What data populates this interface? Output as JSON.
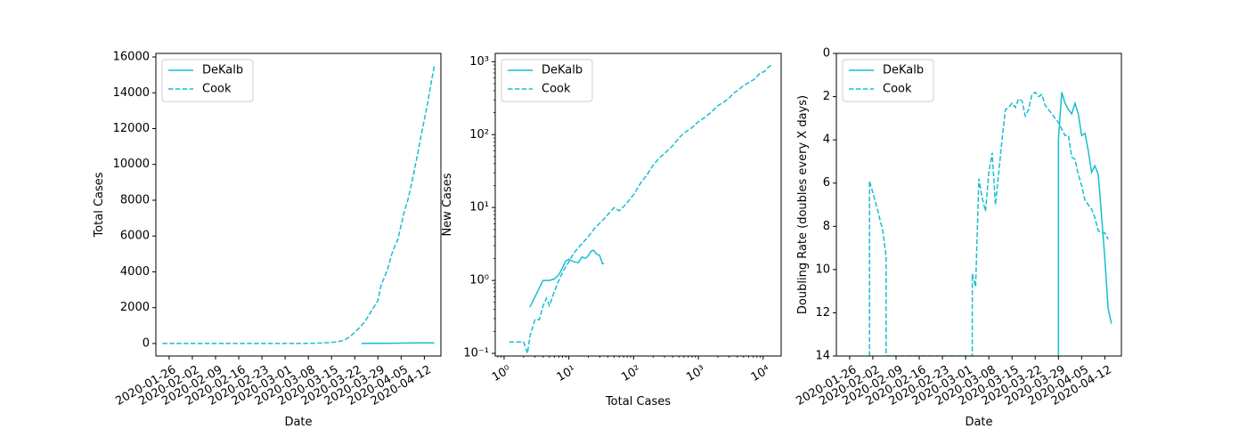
{
  "chart_data": [
    {
      "type": "line",
      "xlabel": "Date",
      "ylabel": "Total Cases",
      "xscale": "date",
      "yscale": "linear",
      "xlim": [
        "2020-01-22",
        "2020-04-17"
      ],
      "ylim": [
        -700,
        16200
      ],
      "x_ticks": [
        "2020-01-26",
        "2020-02-02",
        "2020-02-09",
        "2020-02-16",
        "2020-02-23",
        "2020-03-01",
        "2020-03-08",
        "2020-03-15",
        "2020-03-22",
        "2020-03-29",
        "2020-04-05",
        "2020-04-12"
      ],
      "y_ticks": [
        0,
        2000,
        4000,
        6000,
        8000,
        10000,
        12000,
        14000,
        16000
      ],
      "legend_position": "upper left",
      "series": [
        {
          "name": "DeKalb",
          "style": "solid",
          "color": "#17becf",
          "points": [
            [
              "2020-03-24",
              1
            ],
            [
              "2020-03-27",
              4
            ],
            [
              "2020-03-31",
              10
            ],
            [
              "2020-04-03",
              18
            ],
            [
              "2020-04-07",
              25
            ],
            [
              "2020-04-11",
              30
            ],
            [
              "2020-04-15",
              33
            ]
          ]
        },
        {
          "name": "Cook",
          "style": "dashed",
          "color": "#17becf",
          "points": [
            [
              "2020-01-24",
              1
            ],
            [
              "2020-02-15",
              2
            ],
            [
              "2020-03-01",
              3
            ],
            [
              "2020-03-08",
              6
            ],
            [
              "2020-03-12",
              25
            ],
            [
              "2020-03-15",
              60
            ],
            [
              "2020-03-17",
              100
            ],
            [
              "2020-03-19",
              200
            ],
            [
              "2020-03-21",
              450
            ],
            [
              "2020-03-23",
              800
            ],
            [
              "2020-03-25",
              1200
            ],
            [
              "2020-03-27",
              1800
            ],
            [
              "2020-03-29",
              2400
            ],
            [
              "2020-03-30",
              3300
            ],
            [
              "2020-03-31",
              3700
            ],
            [
              "2020-04-01",
              4200
            ],
            [
              "2020-04-02",
              4900
            ],
            [
              "2020-04-03",
              5400
            ],
            [
              "2020-04-04",
              5800
            ],
            [
              "2020-04-05",
              6600
            ],
            [
              "2020-04-06",
              7400
            ],
            [
              "2020-04-07",
              8000
            ],
            [
              "2020-04-08",
              8800
            ],
            [
              "2020-04-09",
              9700
            ],
            [
              "2020-04-10",
              10600
            ],
            [
              "2020-04-11",
              11600
            ],
            [
              "2020-04-12",
              12500
            ],
            [
              "2020-04-13",
              13400
            ],
            [
              "2020-04-14",
              14500
            ],
            [
              "2020-04-15",
              15500
            ]
          ]
        }
      ]
    },
    {
      "type": "line",
      "xlabel": "Total Cases",
      "ylabel": "New Cases",
      "xscale": "log",
      "yscale": "log",
      "xlim": [
        0.73,
        19000
      ],
      "ylim": [
        0.092,
        1300
      ],
      "x_ticks": [
        {
          "value": 1,
          "label": "10⁰"
        },
        {
          "value": 10,
          "label": "10¹"
        },
        {
          "value": 100,
          "label": "10²"
        },
        {
          "value": 1000,
          "label": "10³"
        },
        {
          "value": 10000,
          "label": "10⁴"
        }
      ],
      "y_ticks": [
        {
          "value": 0.1,
          "label": "10⁻¹"
        },
        {
          "value": 1,
          "label": "10⁰"
        },
        {
          "value": 10,
          "label": "10¹"
        },
        {
          "value": 100,
          "label": "10²"
        },
        {
          "value": 1000,
          "label": "10³"
        }
      ],
      "legend_position": "upper left",
      "series": [
        {
          "name": "DeKalb",
          "style": "solid",
          "color": "#17becf",
          "points": [
            [
              2.5,
              0.43
            ],
            [
              4,
              1.0
            ],
            [
              5,
              1.0
            ],
            [
              6,
              1.05
            ],
            [
              7,
              1.2
            ],
            [
              8,
              1.5
            ],
            [
              9,
              1.85
            ],
            [
              10,
              1.95
            ],
            [
              12,
              1.8
            ],
            [
              14,
              1.75
            ],
            [
              16,
              2.1
            ],
            [
              18,
              2.0
            ],
            [
              20,
              2.2
            ],
            [
              22,
              2.5
            ],
            [
              24,
              2.6
            ],
            [
              27,
              2.3
            ],
            [
              30,
              2.2
            ],
            [
              33,
              1.7
            ],
            [
              35,
              1.7
            ]
          ]
        },
        {
          "name": "Cook",
          "style": "dashed",
          "color": "#17becf",
          "points": [
            [
              1.2,
              0.143
            ],
            [
              2,
              0.143
            ],
            [
              2.3,
              0.1
            ],
            [
              2.5,
              0.17
            ],
            [
              3,
              0.29
            ],
            [
              3.5,
              0.29
            ],
            [
              4,
              0.45
            ],
            [
              4.5,
              0.57
            ],
            [
              5,
              0.45
            ],
            [
              6,
              0.71
            ],
            [
              7,
              1.0
            ],
            [
              8,
              1.3
            ],
            [
              10,
              1.8
            ],
            [
              12,
              2.4
            ],
            [
              15,
              3.0
            ],
            [
              20,
              4.0
            ],
            [
              25,
              5.2
            ],
            [
              35,
              7.0
            ],
            [
              45,
              9.0
            ],
            [
              50,
              10.0
            ],
            [
              60,
              9.0
            ],
            [
              75,
              11.0
            ],
            [
              100,
              15.0
            ],
            [
              130,
              22.0
            ],
            [
              160,
              28.0
            ],
            [
              200,
              38.0
            ],
            [
              250,
              48.0
            ],
            [
              300,
              55.0
            ],
            [
              400,
              70.0
            ],
            [
              500,
              90.0
            ],
            [
              600,
              105.0
            ],
            [
              800,
              125.0
            ],
            [
              1000,
              150.0
            ],
            [
              1300,
              175.0
            ],
            [
              1600,
              205.0
            ],
            [
              2000,
              250.0
            ],
            [
              2500,
              280.0
            ],
            [
              3000,
              320.0
            ],
            [
              3500,
              370.0
            ],
            [
              4000,
              400.0
            ],
            [
              5000,
              470.0
            ],
            [
              6000,
              520.0
            ],
            [
              7000,
              560.0
            ],
            [
              8000,
              620.0
            ],
            [
              9000,
              700.0
            ],
            [
              10000,
              720.0
            ],
            [
              11000,
              760.0
            ],
            [
              12000,
              840.0
            ],
            [
              13000,
              880.0
            ],
            [
              14000,
              900.0
            ]
          ]
        }
      ]
    },
    {
      "type": "line",
      "xlabel": "Date",
      "ylabel": "Doubling Rate (doubles every X days)",
      "xscale": "date",
      "yscale": "linear",
      "y_inverted": true,
      "xlim": [
        "2020-01-22",
        "2020-04-17"
      ],
      "ylim": [
        14,
        0
      ],
      "x_ticks": [
        "2020-01-26",
        "2020-02-02",
        "2020-02-09",
        "2020-02-16",
        "2020-02-23",
        "2020-03-01",
        "2020-03-08",
        "2020-03-15",
        "2020-03-22",
        "2020-03-29",
        "2020-04-05",
        "2020-04-12"
      ],
      "y_ticks": [
        0,
        2,
        4,
        6,
        8,
        10,
        12,
        14
      ],
      "legend_position": "upper left",
      "series": [
        {
          "name": "DeKalb",
          "style": "solid",
          "color": "#17becf",
          "points": [
            [
              "2020-03-29",
              14
            ],
            [
              "2020-03-29",
              4.0
            ],
            [
              "2020-03-30",
              1.8
            ],
            [
              "2020-03-31",
              2.3
            ],
            [
              "2020-04-01",
              2.6
            ],
            [
              "2020-04-02",
              2.8
            ],
            [
              "2020-04-03",
              2.3
            ],
            [
              "2020-04-04",
              2.8
            ],
            [
              "2020-04-05",
              3.8
            ],
            [
              "2020-04-06",
              3.7
            ],
            [
              "2020-04-07",
              4.5
            ],
            [
              "2020-04-08",
              5.5
            ],
            [
              "2020-04-09",
              5.2
            ],
            [
              "2020-04-10",
              5.6
            ],
            [
              "2020-04-11",
              7.5
            ],
            [
              "2020-04-12",
              9.5
            ],
            [
              "2020-04-13",
              11.8
            ],
            [
              "2020-04-14",
              12.5
            ]
          ]
        },
        {
          "name": "Cook",
          "style": "dashed",
          "color": "#17becf",
          "points": [
            [
              "2020-02-01",
              14
            ],
            [
              "2020-02-01",
              5.9
            ],
            [
              "2020-02-03",
              7.0
            ],
            [
              "2020-02-05",
              8.2
            ],
            [
              "2020-02-06",
              9.4
            ],
            [
              "2020-02-06",
              14
            ],
            [
              "2020-03-03",
              14
            ],
            [
              "2020-03-03",
              10.2
            ],
            [
              "2020-03-04",
              10.8
            ],
            [
              "2020-03-05",
              5.8
            ],
            [
              "2020-03-06",
              6.7
            ],
            [
              "2020-03-07",
              7.3
            ],
            [
              "2020-03-08",
              5.5
            ],
            [
              "2020-03-09",
              4.6
            ],
            [
              "2020-03-10",
              7.0
            ],
            [
              "2020-03-11",
              5.5
            ],
            [
              "2020-03-12",
              4.0
            ],
            [
              "2020-03-13",
              2.6
            ],
            [
              "2020-03-14",
              2.5
            ],
            [
              "2020-03-15",
              2.3
            ],
            [
              "2020-03-16",
              2.5
            ],
            [
              "2020-03-17",
              2.1
            ],
            [
              "2020-03-18",
              2.2
            ],
            [
              "2020-03-19",
              2.9
            ],
            [
              "2020-03-20",
              2.6
            ],
            [
              "2020-03-21",
              1.9
            ],
            [
              "2020-03-22",
              1.8
            ],
            [
              "2020-03-23",
              2.0
            ],
            [
              "2020-03-24",
              1.9
            ],
            [
              "2020-03-25",
              2.4
            ],
            [
              "2020-03-26",
              2.6
            ],
            [
              "2020-03-27",
              2.8
            ],
            [
              "2020-03-28",
              3.0
            ],
            [
              "2020-03-29",
              3.2
            ],
            [
              "2020-03-30",
              3.5
            ],
            [
              "2020-03-31",
              3.8
            ],
            [
              "2020-04-01",
              3.8
            ],
            [
              "2020-04-02",
              4.8
            ],
            [
              "2020-04-03",
              4.9
            ],
            [
              "2020-04-04",
              5.6
            ],
            [
              "2020-04-05",
              6.1
            ],
            [
              "2020-04-06",
              6.8
            ],
            [
              "2020-04-07",
              7.0
            ],
            [
              "2020-04-08",
              7.2
            ],
            [
              "2020-04-09",
              7.6
            ],
            [
              "2020-04-10",
              8.2
            ],
            [
              "2020-04-11",
              8.3
            ],
            [
              "2020-04-12",
              8.3
            ],
            [
              "2020-04-13",
              8.6
            ]
          ]
        }
      ]
    }
  ]
}
